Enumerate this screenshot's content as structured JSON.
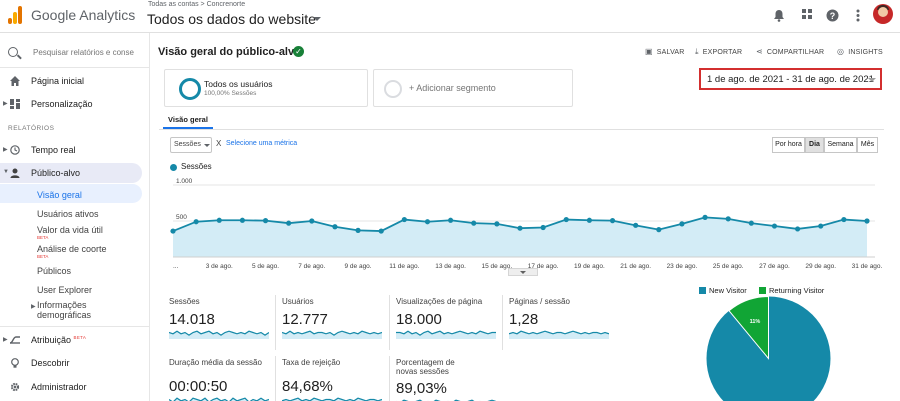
{
  "header": {
    "product": "Google Analytics",
    "breadcrumb": "Todas as contas > Concrenorte",
    "account": "Todos os dados do website",
    "icons": [
      "bell-icon",
      "apps-grid-icon",
      "help-icon",
      "kebab-menu-icon"
    ]
  },
  "sidebar": {
    "search_placeholder": "Pesquisar relatórios e conse",
    "items_top": [
      {
        "label": "Página inicial",
        "icon": "home-icon"
      },
      {
        "label": "Personalização",
        "icon": "dashboard-icon"
      }
    ],
    "section": "RELATÓRIOS",
    "items_reports": [
      {
        "label": "Tempo real",
        "icon": "clock-icon"
      },
      {
        "label": "Público-alvo",
        "icon": "person-icon"
      }
    ],
    "sub_items": [
      {
        "label": "Visão geral"
      },
      {
        "label": "Usuários ativos"
      },
      {
        "label": "Valor da vida útil",
        "badge": "BETA"
      },
      {
        "label": "Análise de coorte",
        "badge": "BETA"
      },
      {
        "label": "Públicos"
      },
      {
        "label": "User Explorer"
      },
      {
        "label": "Informações demográficas"
      }
    ],
    "items_bottom": [
      {
        "label": "Atribuição",
        "badge": "BETA",
        "icon": "attribution-icon"
      },
      {
        "label": "Descobrir",
        "icon": "lightbulb-icon"
      },
      {
        "label": "Administrador",
        "icon": "gear-icon"
      }
    ]
  },
  "main": {
    "title": "Visão geral do público-alvo",
    "actions": {
      "save": "SALVAR",
      "export": "EXPORTAR",
      "share": "COMPARTILHAR",
      "insights": "INSIGHTS"
    },
    "segment": {
      "title": "Todos os usuários",
      "subtitle": "100,00% Sessões"
    },
    "add_segment": "+ Adicionar segmento",
    "date_range": "1 de ago. de 2021 - 31 de ago. de 2021",
    "tab": "Visão geral",
    "metric": "Sessões",
    "vs": "X",
    "select_metric": "Selecione uma métrica",
    "granularity": [
      "Por hora",
      "Dia",
      "Semana",
      "Mês"
    ],
    "granularity_active": "Dia",
    "kpis": [
      {
        "label": "Sessões",
        "value": "14.018"
      },
      {
        "label": "Usuários",
        "value": "12.777"
      },
      {
        "label": "Visualizações de página",
        "value": "18.000"
      },
      {
        "label": "Páginas / sessão",
        "value": "1,28"
      },
      {
        "label": "Duração média da sessão",
        "value": "00:00:50"
      },
      {
        "label": "Taxa de rejeição",
        "value": "84,68%"
      },
      {
        "label": "Porcentagem de novas sessões",
        "value": "89,03%"
      }
    ],
    "pie": {
      "legend": [
        {
          "name": "New Visitor",
          "color": "#1589a8"
        },
        {
          "name": "Returning Visitor",
          "color": "#11a535"
        }
      ],
      "returning_label": "11%",
      "returning_fraction": 0.11
    }
  },
  "chart_data": {
    "type": "area",
    "title": "",
    "series": [
      {
        "name": "Sessões",
        "values": [
          360,
          490,
          510,
          510,
          505,
          470,
          500,
          420,
          370,
          360,
          520,
          490,
          510,
          470,
          460,
          400,
          410,
          520,
          510,
          505,
          440,
          380,
          460,
          550,
          530,
          470,
          430,
          390,
          430,
          520,
          500
        ]
      }
    ],
    "x": [
      "1",
      "2",
      "3",
      "4",
      "5",
      "6",
      "7",
      "8",
      "9",
      "10",
      "11",
      "12",
      "13",
      "14",
      "15",
      "16",
      "17",
      "18",
      "19",
      "20",
      "21",
      "22",
      "23",
      "24",
      "25",
      "26",
      "27",
      "28",
      "29",
      "30",
      "31"
    ],
    "x_tick_labels": [
      "...",
      "3 de ago.",
      "5 de ago.",
      "7 de ago.",
      "9 de ago.",
      "11 de ago.",
      "13 de ago.",
      "15 de ago.",
      "17 de ago.",
      "19 de ago.",
      "21 de ago.",
      "23 de ago.",
      "25 de ago.",
      "27 de ago.",
      "29 de ago.",
      "31 de ago."
    ],
    "y_ticks": [
      "1.000",
      "500"
    ],
    "ylim": [
      0,
      1000
    ],
    "color": "#1589a8",
    "fill": "#d3ecf6"
  }
}
